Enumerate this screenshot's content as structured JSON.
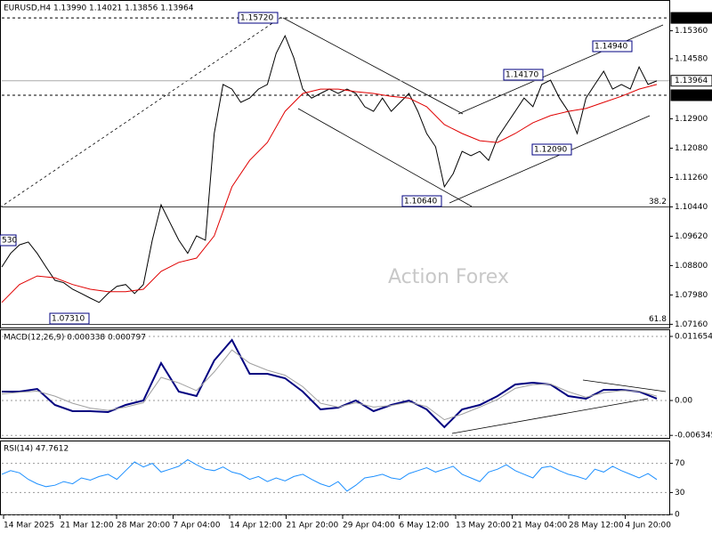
{
  "chart_data": [
    {
      "type": "line",
      "title": "EURUSD,H4 1.13990 1.14021 1.13856 1.13964",
      "watermark": "Action Forex",
      "ylim": [
        1.0707,
        1.1622
      ],
      "yticks": [
        {
          "value": 1.1536,
          "label": "1.15360"
        },
        {
          "value": 1.1458,
          "label": "1.14580"
        },
        {
          "value": 1.129,
          "label": "1.12900"
        },
        {
          "value": 1.1208,
          "label": "1.12080"
        },
        {
          "value": 1.1126,
          "label": "1.11260"
        },
        {
          "value": 1.1044,
          "label": "1.10440"
        },
        {
          "value": 1.0962,
          "label": "1.09620"
        },
        {
          "value": 1.088,
          "label": "1.08800"
        },
        {
          "value": 1.0798,
          "label": "1.07980"
        },
        {
          "value": 1.0716,
          "label": "1.07160"
        }
      ],
      "levels": [
        {
          "value": 1.1572,
          "label": "1.15720"
        },
        {
          "value": 1.13964,
          "label": "1.13964"
        },
        {
          "value": 1.1356,
          "label": "1.13560"
        }
      ],
      "fib": [
        {
          "value": 1.1044,
          "label": "38.2"
        },
        {
          "value": 1.0716,
          "label": "61.8"
        }
      ],
      "annotations": [
        "1.15720",
        "1.14940",
        "1.14170",
        "1.12090",
        "1.10640",
        "1.07310",
        "530"
      ],
      "series": [
        {
          "color": "#000000",
          "values": [
            1.0876,
            1.0914,
            1.0938,
            1.0946,
            1.0914,
            1.0876,
            1.0839,
            1.0832,
            1.0814,
            1.0802,
            1.0789,
            1.0777,
            1.0802,
            1.0822,
            1.0827,
            1.0802,
            1.0827,
            1.0951,
            1.105,
            1.1,
            1.0951,
            1.0914,
            1.0963,
            1.0951,
            1.1249,
            1.1386,
            1.1373,
            1.1336,
            1.1348,
            1.1373,
            1.1386,
            1.1473,
            1.1522,
            1.146,
            1.1373,
            1.1348,
            1.1361,
            1.1373,
            1.1361,
            1.1373,
            1.1361,
            1.1324,
            1.1311,
            1.1348,
            1.1311,
            1.1336,
            1.1361,
            1.1311,
            1.1249,
            1.1212,
            1.11,
            1.1137,
            1.1199,
            1.1187,
            1.1199,
            1.1174,
            1.1237,
            1.1274,
            1.1311,
            1.1348,
            1.1324,
            1.1386,
            1.1398,
            1.1348,
            1.1311,
            1.1249,
            1.1348,
            1.1386,
            1.1423,
            1.1373,
            1.1386,
            1.1373,
            1.1435,
            1.1386,
            1.1396
          ]
        },
        {
          "color": "#e00000",
          "values": [
            1.0777,
            1.0827,
            1.0851,
            1.0846,
            1.0827,
            1.0814,
            1.0807,
            1.0807,
            1.0814,
            1.0864,
            1.0889,
            1.0901,
            1.0963,
            1.11,
            1.1174,
            1.1224,
            1.1311,
            1.1361,
            1.1373,
            1.1373,
            1.1366,
            1.1361,
            1.1353,
            1.1348,
            1.1324,
            1.1274,
            1.1249,
            1.1229,
            1.1224,
            1.1249,
            1.1279,
            1.1299,
            1.1311,
            1.1319,
            1.1336,
            1.1353,
            1.1373,
            1.1386
          ]
        }
      ],
      "x_labels": [
        "14 Mar 2025",
        "21 Mar 12:00",
        "28 Mar 20:00",
        "7 Apr 04:00",
        "14 Apr 12:00",
        "21 Apr 20:00",
        "29 Apr 04:00",
        "6 May 12:00",
        "13 May 20:00",
        "21 May 04:00",
        "28 May 12:00",
        "4 Jun 20:00"
      ]
    },
    {
      "type": "line",
      "title": "MACD(12,26,9) 0.000338 0.000797",
      "ylim": [
        -0.0068,
        0.012949
      ],
      "yticks": [
        0.011654,
        {
          "value": 0,
          "label": "0.00"
        },
        -0.006345
      ],
      "series": [
        {
          "color": "#000080",
          "values": [
            0.00162,
            0.00162,
            0.0021,
            -0.00081,
            -0.00194,
            -0.00194,
            -0.0021,
            -0.00081,
            0,
            0.0068,
            0.00162,
            0.00081,
            0.00729,
            0.01101,
            0.00486,
            0.00486,
            0.00405,
            0.00162,
            -0.00162,
            -0.0013,
            0,
            -0.00194,
            -0.00081,
            0,
            -0.00162,
            -0.00486,
            -0.00162,
            -0.00081,
            0.00081,
            0.00291,
            0.00324,
            0.00291,
            0.00081,
            0.00032,
            0.00194,
            0.00194,
            0.00162,
            0.000338
          ]
        },
        {
          "color": "#a0a0a0",
          "values": [
            0.0012,
            0.0015,
            0.0017,
            0.0008,
            -0.0005,
            -0.0014,
            -0.0018,
            -0.0012,
            -0.0004,
            0.0042,
            0.0032,
            0.0018,
            0.0052,
            0.0092,
            0.0068,
            0.0055,
            0.0046,
            0.0025,
            -0.0005,
            -0.0012,
            -0.0004,
            -0.0012,
            -0.0009,
            -0.0003,
            -0.0011,
            -0.0035,
            -0.0025,
            -0.0012,
            0.0002,
            0.0022,
            0.0029,
            0.003,
            0.0016,
            0.0006,
            0.0014,
            0.0018,
            0.0017,
            0.000797
          ]
        }
      ]
    },
    {
      "type": "line",
      "title": "RSI(14) 47.7612",
      "ylim": [
        0,
        100
      ],
      "yticks": [
        70,
        30,
        0
      ],
      "series": [
        {
          "color": "#1e90ff",
          "values": [
            55,
            60,
            57,
            48,
            42,
            38,
            40,
            45,
            42,
            50,
            47,
            52,
            55,
            48,
            60,
            72,
            65,
            70,
            58,
            62,
            66,
            75,
            68,
            62,
            60,
            65,
            58,
            55,
            48,
            52,
            45,
            50,
            46,
            52,
            55,
            48,
            42,
            38,
            45,
            32,
            40,
            50,
            52,
            55,
            50,
            48,
            56,
            60,
            64,
            58,
            62,
            66,
            55,
            50,
            45,
            58,
            62,
            68,
            60,
            55,
            50,
            64,
            66,
            60,
            55,
            52,
            48,
            62,
            58,
            66,
            60,
            55,
            50,
            56,
            47.7612
          ]
        }
      ]
    }
  ]
}
